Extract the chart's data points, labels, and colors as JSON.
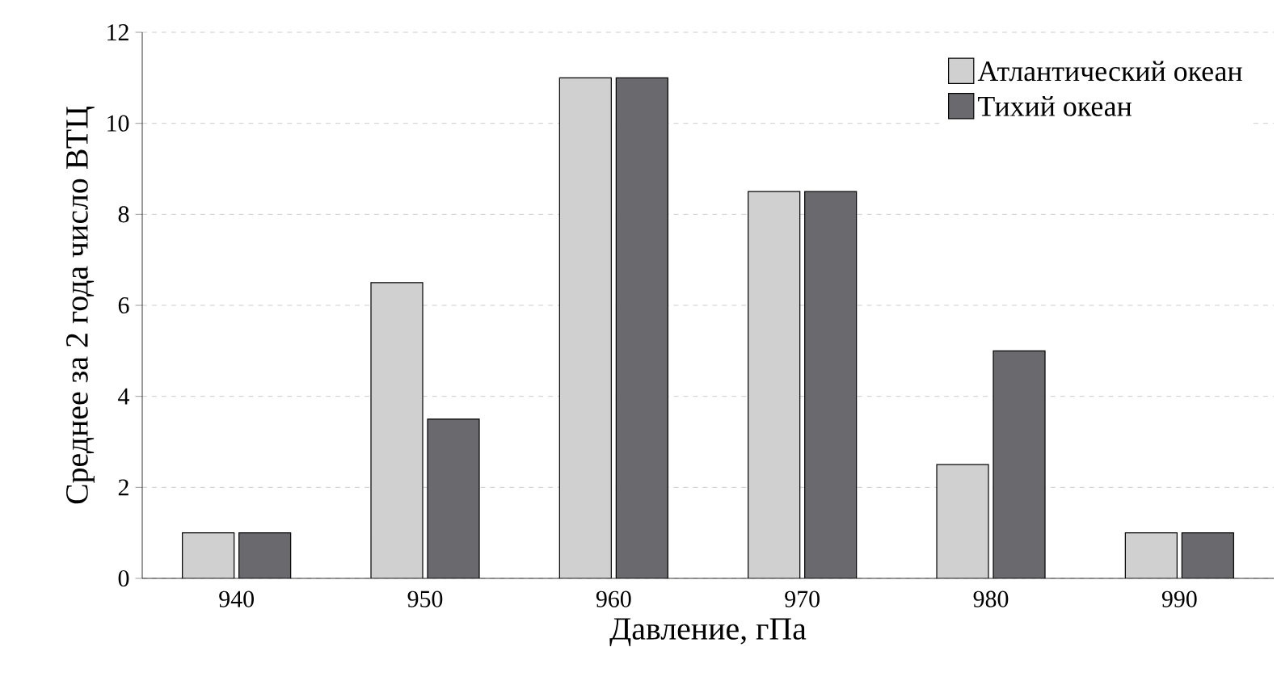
{
  "chart_data": {
    "type": "bar",
    "xlabel": "Давление, гПа",
    "ylabel": "Среднее за 2 года число ВТЦ",
    "categories": [
      "940",
      "950",
      "960",
      "970",
      "980",
      "990"
    ],
    "series": [
      {
        "name": "Атлантический океан",
        "color": "#d0d0d0",
        "values": [
          1,
          6.5,
          11,
          8.5,
          2.5,
          1
        ]
      },
      {
        "name": "Тихий океан",
        "color": "#6a6a6e",
        "values": [
          1,
          3.5,
          11,
          8.5,
          5,
          1
        ]
      }
    ],
    "ylim": [
      0,
      12
    ],
    "yticks": [
      0,
      2,
      4,
      6,
      8,
      10,
      12
    ],
    "grid": "y",
    "legend": "top right"
  }
}
